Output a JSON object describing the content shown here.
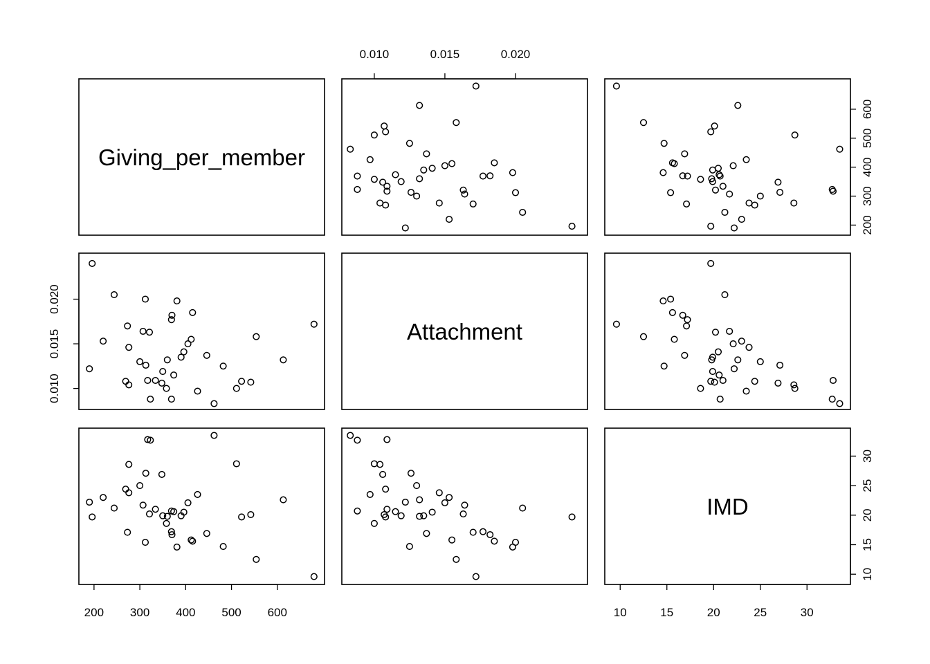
{
  "chart_data": {
    "type": "scatter-matrix",
    "variables": [
      "Giving_per_member",
      "Attachment",
      "IMD"
    ],
    "axes": {
      "Giving_per_member": {
        "range": [
          170,
          700
        ],
        "ticks": [
          200,
          300,
          400,
          500,
          600
        ],
        "tick_labels": [
          "200",
          "300",
          "400",
          "500",
          "600"
        ]
      },
      "Attachment": {
        "range": [
          0.0078,
          0.025
        ],
        "ticks": [
          0.01,
          0.015,
          0.02
        ],
        "tick_labels": [
          "0.010",
          "0.015",
          "0.020"
        ]
      },
      "IMD": {
        "range": [
          8.5,
          34.5
        ],
        "ticks": [
          10,
          15,
          20,
          25,
          30
        ],
        "tick_labels": [
          "10",
          "15",
          "20",
          "25",
          "30"
        ]
      }
    },
    "observations": [
      {
        "Giving_per_member": 680,
        "Attachment": 0.0172,
        "IMD": 9.6
      },
      {
        "Giving_per_member": 613,
        "Attachment": 0.0132,
        "IMD": 22.6
      },
      {
        "Giving_per_member": 554,
        "Attachment": 0.0158,
        "IMD": 12.5
      },
      {
        "Giving_per_member": 542,
        "Attachment": 0.0107,
        "IMD": 20.1
      },
      {
        "Giving_per_member": 522,
        "Attachment": 0.0108,
        "IMD": 19.7
      },
      {
        "Giving_per_member": 511,
        "Attachment": 0.01,
        "IMD": 28.7
      },
      {
        "Giving_per_member": 482,
        "Attachment": 0.0125,
        "IMD": 14.7
      },
      {
        "Giving_per_member": 462,
        "Attachment": 0.0083,
        "IMD": 33.5
      },
      {
        "Giving_per_member": 446,
        "Attachment": 0.0137,
        "IMD": 16.9
      },
      {
        "Giving_per_member": 426,
        "Attachment": 0.0097,
        "IMD": 23.5
      },
      {
        "Giving_per_member": 415,
        "Attachment": 0.0185,
        "IMD": 15.6
      },
      {
        "Giving_per_member": 412,
        "Attachment": 0.0155,
        "IMD": 15.8
      },
      {
        "Giving_per_member": 405,
        "Attachment": 0.015,
        "IMD": 22.1
      },
      {
        "Giving_per_member": 396,
        "Attachment": 0.0141,
        "IMD": 20.5
      },
      {
        "Giving_per_member": 390,
        "Attachment": 0.0135,
        "IMD": 19.9
      },
      {
        "Giving_per_member": 381,
        "Attachment": 0.0198,
        "IMD": 14.6
      },
      {
        "Giving_per_member": 374,
        "Attachment": 0.0115,
        "IMD": 20.6
      },
      {
        "Giving_per_member": 370,
        "Attachment": 0.0182,
        "IMD": 16.7
      },
      {
        "Giving_per_member": 369,
        "Attachment": 0.0177,
        "IMD": 17.2
      },
      {
        "Giving_per_member": 369,
        "Attachment": 0.0088,
        "IMD": 20.7
      },
      {
        "Giving_per_member": 360,
        "Attachment": 0.0132,
        "IMD": 19.8
      },
      {
        "Giving_per_member": 358,
        "Attachment": 0.01,
        "IMD": 18.6
      },
      {
        "Giving_per_member": 350,
        "Attachment": 0.0119,
        "IMD": 19.9
      },
      {
        "Giving_per_member": 348,
        "Attachment": 0.0106,
        "IMD": 26.9
      },
      {
        "Giving_per_member": 334,
        "Attachment": 0.0109,
        "IMD": 21.0
      },
      {
        "Giving_per_member": 323,
        "Attachment": 0.0088,
        "IMD": 32.7
      },
      {
        "Giving_per_member": 321,
        "Attachment": 0.0163,
        "IMD": 20.2
      },
      {
        "Giving_per_member": 317,
        "Attachment": 0.0109,
        "IMD": 32.8
      },
      {
        "Giving_per_member": 313,
        "Attachment": 0.0126,
        "IMD": 27.1
      },
      {
        "Giving_per_member": 312,
        "Attachment": 0.02,
        "IMD": 15.4
      },
      {
        "Giving_per_member": 307,
        "Attachment": 0.0164,
        "IMD": 21.7
      },
      {
        "Giving_per_member": 300,
        "Attachment": 0.013,
        "IMD": 25.0
      },
      {
        "Giving_per_member": 276,
        "Attachment": 0.0146,
        "IMD": 23.8
      },
      {
        "Giving_per_member": 276,
        "Attachment": 0.0104,
        "IMD": 28.6
      },
      {
        "Giving_per_member": 273,
        "Attachment": 0.017,
        "IMD": 17.1
      },
      {
        "Giving_per_member": 269,
        "Attachment": 0.0108,
        "IMD": 24.4
      },
      {
        "Giving_per_member": 244,
        "Attachment": 0.0205,
        "IMD": 21.2
      },
      {
        "Giving_per_member": 220,
        "Attachment": 0.0153,
        "IMD": 23.0
      },
      {
        "Giving_per_member": 196,
        "Attachment": 0.024,
        "IMD": 19.7
      },
      {
        "Giving_per_member": 190,
        "Attachment": 0.0122,
        "IMD": 22.2
      }
    ]
  }
}
